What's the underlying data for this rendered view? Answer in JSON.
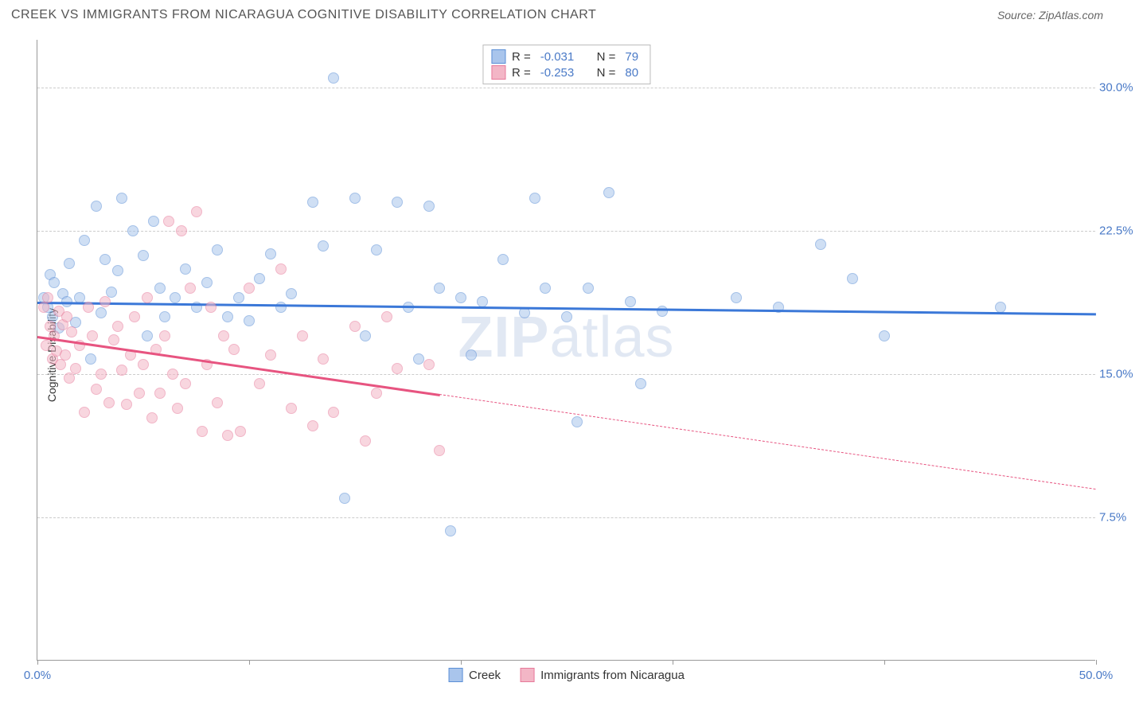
{
  "title": "CREEK VS IMMIGRANTS FROM NICARAGUA COGNITIVE DISABILITY CORRELATION CHART",
  "source": "Source: ZipAtlas.com",
  "ylabel": "Cognitive Disability",
  "watermark_a": "ZIP",
  "watermark_b": "atlas",
  "chart": {
    "type": "scatter",
    "xlim": [
      0,
      50
    ],
    "ylim": [
      0,
      32.5
    ],
    "xtick_positions": [
      0,
      10,
      20,
      30,
      40,
      50
    ],
    "xtick_labels": [
      "0.0%",
      "",
      "",
      "",
      "",
      "50.0%"
    ],
    "ytick_positions": [
      7.5,
      15.0,
      22.5,
      30.0
    ],
    "ytick_labels": [
      "7.5%",
      "15.0%",
      "22.5%",
      "30.0%"
    ],
    "grid_color": "#cccccc",
    "background_color": "#ffffff",
    "axis_color": "#999999",
    "tick_label_color": "#4a7ac7",
    "marker_radius": 7,
    "marker_opacity": 0.55,
    "series": [
      {
        "name": "Creek",
        "color_fill": "#a9c5ec",
        "color_stroke": "#5b8fd6",
        "line_color": "#3b78d8",
        "R": "-0.031",
        "N": "79",
        "trend": {
          "x1": 0,
          "y1": 18.8,
          "x2": 50,
          "y2": 18.2,
          "solid_until_x": 50
        },
        "points": [
          [
            0.3,
            19.0
          ],
          [
            0.5,
            18.5
          ],
          [
            0.6,
            20.2
          ],
          [
            0.7,
            18.0
          ],
          [
            0.8,
            19.8
          ],
          [
            1.0,
            17.4
          ],
          [
            1.2,
            19.2
          ],
          [
            1.4,
            18.8
          ],
          [
            1.5,
            20.8
          ],
          [
            1.8,
            17.7
          ],
          [
            2.0,
            19.0
          ],
          [
            2.2,
            22.0
          ],
          [
            2.5,
            15.8
          ],
          [
            2.8,
            23.8
          ],
          [
            3.0,
            18.2
          ],
          [
            3.2,
            21.0
          ],
          [
            3.5,
            19.3
          ],
          [
            3.8,
            20.4
          ],
          [
            4.0,
            24.2
          ],
          [
            4.5,
            22.5
          ],
          [
            5.0,
            21.2
          ],
          [
            5.2,
            17.0
          ],
          [
            5.5,
            23.0
          ],
          [
            5.8,
            19.5
          ],
          [
            6.0,
            18.0
          ],
          [
            6.5,
            19.0
          ],
          [
            7.0,
            20.5
          ],
          [
            7.5,
            18.5
          ],
          [
            8.0,
            19.8
          ],
          [
            8.5,
            21.5
          ],
          [
            9.0,
            18.0
          ],
          [
            9.5,
            19.0
          ],
          [
            10.0,
            17.8
          ],
          [
            10.5,
            20.0
          ],
          [
            11.0,
            21.3
          ],
          [
            11.5,
            18.5
          ],
          [
            12.0,
            19.2
          ],
          [
            13.0,
            24.0
          ],
          [
            13.5,
            21.7
          ],
          [
            14.0,
            30.5
          ],
          [
            14.5,
            8.5
          ],
          [
            15.0,
            24.2
          ],
          [
            15.5,
            17.0
          ],
          [
            16.0,
            21.5
          ],
          [
            17.0,
            24.0
          ],
          [
            17.5,
            18.5
          ],
          [
            18.0,
            15.8
          ],
          [
            18.5,
            23.8
          ],
          [
            19.0,
            19.5
          ],
          [
            19.5,
            6.8
          ],
          [
            20.0,
            19.0
          ],
          [
            20.5,
            16.0
          ],
          [
            21.0,
            18.8
          ],
          [
            22.0,
            21.0
          ],
          [
            23.0,
            18.2
          ],
          [
            23.5,
            24.2
          ],
          [
            24.0,
            19.5
          ],
          [
            25.0,
            18.0
          ],
          [
            25.5,
            12.5
          ],
          [
            26.0,
            19.5
          ],
          [
            27.0,
            24.5
          ],
          [
            28.0,
            18.8
          ],
          [
            28.5,
            14.5
          ],
          [
            29.5,
            18.3
          ],
          [
            33.0,
            19.0
          ],
          [
            35.0,
            18.5
          ],
          [
            37.0,
            21.8
          ],
          [
            38.5,
            20.0
          ],
          [
            40.0,
            17.0
          ],
          [
            45.5,
            18.5
          ]
        ]
      },
      {
        "name": "Immigrants from Nicaragua",
        "color_fill": "#f3b6c6",
        "color_stroke": "#e77a9a",
        "line_color": "#e75480",
        "R": "-0.253",
        "N": "80",
        "trend": {
          "x1": 0,
          "y1": 17.0,
          "x2": 50,
          "y2": 9.0,
          "solid_until_x": 19
        },
        "points": [
          [
            0.3,
            18.5
          ],
          [
            0.4,
            16.5
          ],
          [
            0.5,
            19.0
          ],
          [
            0.6,
            17.5
          ],
          [
            0.7,
            15.8
          ],
          [
            0.8,
            17.0
          ],
          [
            0.9,
            16.2
          ],
          [
            1.0,
            18.3
          ],
          [
            1.1,
            15.5
          ],
          [
            1.2,
            17.6
          ],
          [
            1.3,
            16.0
          ],
          [
            1.4,
            18.0
          ],
          [
            1.5,
            14.8
          ],
          [
            1.6,
            17.2
          ],
          [
            1.8,
            15.3
          ],
          [
            2.0,
            16.5
          ],
          [
            2.2,
            13.0
          ],
          [
            2.4,
            18.5
          ],
          [
            2.6,
            17.0
          ],
          [
            2.8,
            14.2
          ],
          [
            3.0,
            15.0
          ],
          [
            3.2,
            18.8
          ],
          [
            3.4,
            13.5
          ],
          [
            3.6,
            16.8
          ],
          [
            3.8,
            17.5
          ],
          [
            4.0,
            15.2
          ],
          [
            4.2,
            13.4
          ],
          [
            4.4,
            16.0
          ],
          [
            4.6,
            18.0
          ],
          [
            4.8,
            14.0
          ],
          [
            5.0,
            15.5
          ],
          [
            5.2,
            19.0
          ],
          [
            5.4,
            12.7
          ],
          [
            5.6,
            16.3
          ],
          [
            5.8,
            14.0
          ],
          [
            6.0,
            17.0
          ],
          [
            6.2,
            23.0
          ],
          [
            6.4,
            15.0
          ],
          [
            6.6,
            13.2
          ],
          [
            6.8,
            22.5
          ],
          [
            7.0,
            14.5
          ],
          [
            7.2,
            19.5
          ],
          [
            7.5,
            23.5
          ],
          [
            7.8,
            12.0
          ],
          [
            8.0,
            15.5
          ],
          [
            8.2,
            18.5
          ],
          [
            8.5,
            13.5
          ],
          [
            8.8,
            17.0
          ],
          [
            9.0,
            11.8
          ],
          [
            9.3,
            16.3
          ],
          [
            9.6,
            12.0
          ],
          [
            10.0,
            19.5
          ],
          [
            10.5,
            14.5
          ],
          [
            11.0,
            16.0
          ],
          [
            11.5,
            20.5
          ],
          [
            12.0,
            13.2
          ],
          [
            12.5,
            17.0
          ],
          [
            13.0,
            12.3
          ],
          [
            13.5,
            15.8
          ],
          [
            14.0,
            13.0
          ],
          [
            15.0,
            17.5
          ],
          [
            15.5,
            11.5
          ],
          [
            16.0,
            14.0
          ],
          [
            16.5,
            18.0
          ],
          [
            17.0,
            15.3
          ],
          [
            18.5,
            15.5
          ],
          [
            19.0,
            11.0
          ]
        ]
      }
    ]
  },
  "legend_top": {
    "R_label": "R =",
    "N_label": "N ="
  },
  "legend_bottom": {
    "items": [
      "Creek",
      "Immigrants from Nicaragua"
    ]
  }
}
